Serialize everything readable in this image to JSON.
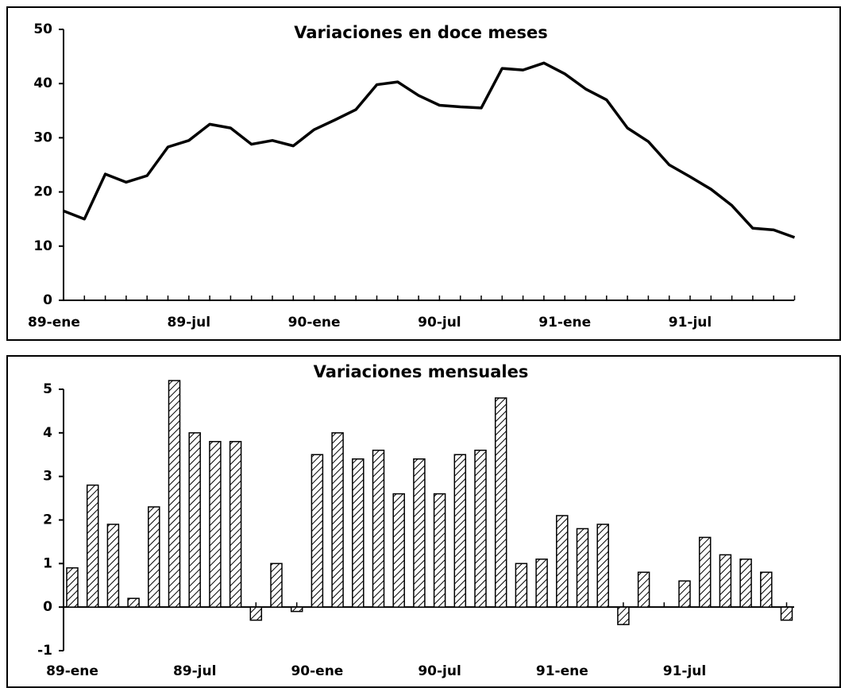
{
  "chart_data": [
    {
      "type": "line",
      "title": "Variaciones en doce meses",
      "categories": [
        "89-ene",
        null,
        null,
        null,
        null,
        null,
        "89-jul",
        null,
        null,
        null,
        null,
        null,
        "90-ene",
        null,
        null,
        null,
        null,
        null,
        "90-jul",
        null,
        null,
        null,
        null,
        null,
        "91-ene",
        null,
        null,
        null,
        null,
        null,
        "91-jul",
        null,
        null,
        null,
        null,
        null
      ],
      "values": [
        16.5,
        15,
        23.3,
        21.8,
        23,
        28.3,
        29.5,
        32.5,
        31.8,
        28.8,
        29.5,
        28.5,
        31.5,
        33.3,
        35.2,
        39.8,
        40.3,
        37.8,
        36,
        35.7,
        35.5,
        42.8,
        42.5,
        43.8,
        41.8,
        39,
        37,
        31.8,
        29.3,
        25,
        22.8,
        20.5,
        17.5,
        13.3,
        13,
        11.6
      ],
      "color": "#000000",
      "ylim": [
        0,
        50
      ],
      "yticks": [
        0,
        10,
        20,
        30,
        40,
        50
      ]
    },
    {
      "type": "bar",
      "title": "Variaciones mensuales",
      "categories": [
        "89-ene",
        null,
        null,
        null,
        null,
        null,
        "89-jul",
        null,
        null,
        null,
        null,
        null,
        "90-ene",
        null,
        null,
        null,
        null,
        null,
        "90-jul",
        null,
        null,
        null,
        null,
        null,
        "91-ene",
        null,
        null,
        null,
        null,
        null,
        "91-jul",
        null,
        null,
        null,
        null,
        null
      ],
      "values": [
        0.9,
        2.8,
        1.9,
        0.2,
        2.3,
        5.2,
        4.0,
        3.8,
        3.8,
        -0.3,
        1.0,
        -0.1,
        3.5,
        4.0,
        3.4,
        3.6,
        2.6,
        3.4,
        2.6,
        3.5,
        3.6,
        4.8,
        1.0,
        1.1,
        2.1,
        1.8,
        1.9,
        -0.4,
        0.8,
        0,
        0.6,
        1.6,
        1.2,
        1.1,
        0.8,
        -0.3
      ],
      "color": "#000000",
      "ylim": [
        -1,
        5
      ],
      "yticks": [
        -1,
        0,
        1,
        2,
        3,
        4,
        5
      ]
    }
  ]
}
